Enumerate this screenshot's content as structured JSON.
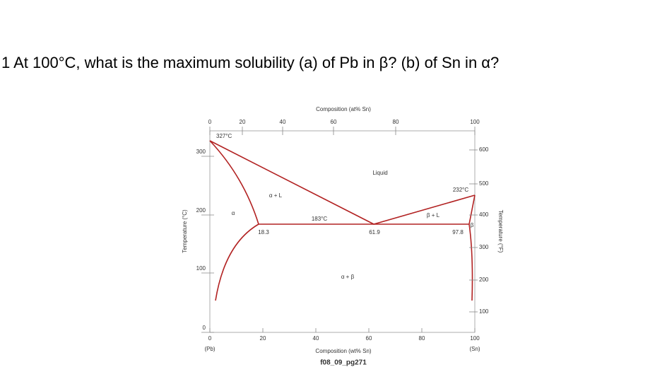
{
  "question": "1 At 100°C, what is the maximum solubility (a) of Pb in β? (b) of Sn in α?",
  "diagram": {
    "top_axis_title": "Composition (at% Sn)",
    "top_ticks": [
      "0",
      "20",
      "40",
      "60",
      "80",
      "100"
    ],
    "bottom_axis_title": "Composition (wt% Sn)",
    "bottom_ticks": [
      "0",
      "20",
      "40",
      "60",
      "80",
      "100"
    ],
    "left_axis_title": "Temperature (°C)",
    "left_ticks": [
      "0",
      "100",
      "200",
      "300"
    ],
    "right_axis_title": "Temperature (°F)",
    "right_ticks": [
      "100",
      "200",
      "300",
      "400",
      "500",
      "600"
    ],
    "left_end": "(Pb)",
    "right_end": "(Sn)",
    "caption": "f08_09_pg271",
    "labels": [
      "327°C",
      "Liquid",
      "232°C",
      "α + L",
      "α",
      "183°C",
      "β + L",
      "β",
      "18.3",
      "61.9",
      "97.8",
      "α + β"
    ]
  }
}
